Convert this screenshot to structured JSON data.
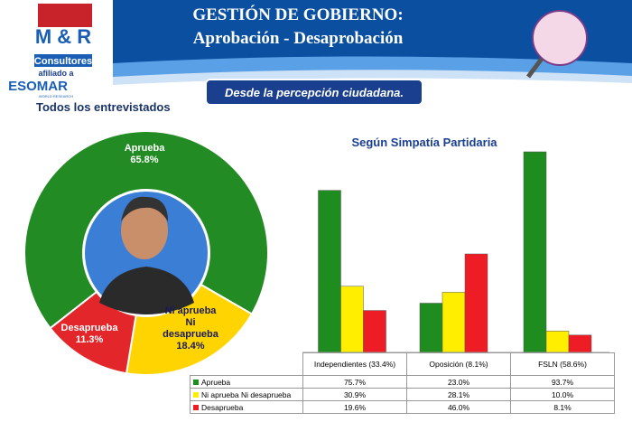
{
  "header": {
    "brand": "M & R",
    "brand_sub": "Consultores",
    "affiliate": "afiliado a",
    "esomar": "ESOMAR",
    "esomar_sub": "WORLD RESEARCH",
    "title": "GESTIÓN DE GOBIERNO:",
    "subtitle": "Aprobación - Desaprobación",
    "tagline": "Desde la percepción ciudadana."
  },
  "chart_data": [
    {
      "type": "pie",
      "title": "Todos los entrevistados",
      "categories": [
        "Aprueba",
        "Ni aprueba Ni desaprueba",
        "Desaprueba"
      ],
      "values": [
        65.8,
        18.4,
        11.3
      ],
      "value_labels": [
        "65.8%",
        "18.4%",
        "11.3%"
      ],
      "colors": [
        "#238b23",
        "#ffd400",
        "#e3262a"
      ]
    },
    {
      "type": "bar",
      "title": "Según Simpatía Partidaria",
      "categories": [
        "Independientes (33.4%)",
        "Oposición (8.1%)",
        "FSLN (58.6%)"
      ],
      "series": [
        {
          "name": "Aprueba",
          "color": "#1f8c1f",
          "values": [
            75.7,
            23.0,
            93.7
          ],
          "value_labels": [
            "75.7%",
            "23.0%",
            "93.7%"
          ]
        },
        {
          "name": "Ni aprueba Ni desaprueba",
          "color": "#ffee00",
          "values": [
            30.9,
            28.1,
            10.0
          ],
          "value_labels": [
            "30.9%",
            "28.1%",
            "10.0%"
          ]
        },
        {
          "name": "Desaprueba",
          "color": "#ee1c24",
          "values": [
            19.6,
            46.0,
            8.1
          ],
          "value_labels": [
            "19.6%",
            "46.0%",
            "8.1%"
          ]
        }
      ]
    }
  ]
}
